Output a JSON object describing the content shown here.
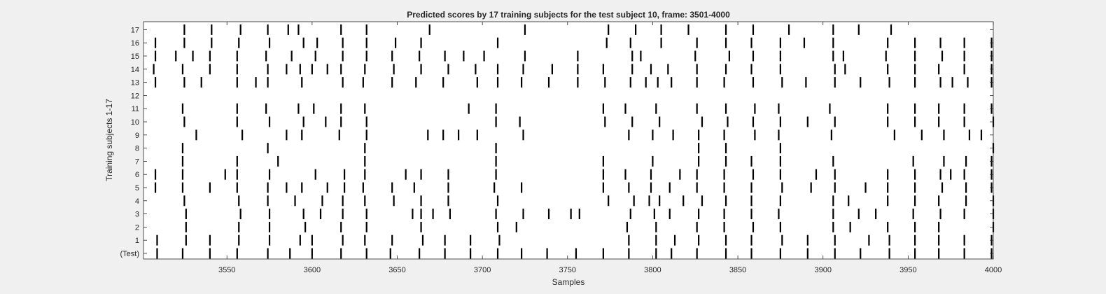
{
  "chart_data": {
    "type": "raster",
    "title": "Predicted scores by 17 training subjects for the test subject 10, frame: 3501-4000",
    "xlabel": "Samples",
    "ylabel": "Training subjects 1-17",
    "xlim": [
      3501,
      4000
    ],
    "x_ticks": [
      3550,
      3600,
      3650,
      3700,
      3750,
      3800,
      3850,
      3900,
      3950,
      4000
    ],
    "y_tick_labels": [
      "(Test)",
      "1",
      "2",
      "3",
      "4",
      "5",
      "6",
      "7",
      "8",
      "9",
      "10",
      "11",
      "12",
      "13",
      "14",
      "15",
      "16",
      "17"
    ],
    "grid": false,
    "mark_color": "#000000",
    "rows": [
      {
        "label": "(Test)",
        "events": [
          3509,
          3524,
          3540,
          3556,
          3574,
          3587,
          3600,
          3617,
          3632,
          3646,
          3663,
          3678,
          3693,
          3709,
          3723,
          3738,
          3755,
          3771,
          3786,
          3802,
          3811,
          3826,
          3843,
          3858,
          3875,
          3891,
          3907,
          3922,
          3939,
          3954,
          3968,
          3983,
          3999
        ]
      },
      {
        "label": "1",
        "events": [
          3509,
          3526,
          3540,
          3557,
          3575,
          3593,
          3600,
          3618,
          3631,
          3647,
          3665,
          3678,
          3693,
          3710,
          3786,
          3802,
          3813,
          3827,
          3843,
          3858,
          3876,
          3891,
          3907,
          3927,
          3939,
          3954,
          3968,
          3983,
          3999
        ]
      },
      {
        "label": "2",
        "events": [
          3526,
          3557,
          3575,
          3596,
          3617,
          3632,
          3664,
          3709,
          3720,
          3785,
          3802,
          3826,
          3842,
          3859,
          3875,
          3906,
          3916,
          3938,
          3954,
          3968,
          4000
        ]
      },
      {
        "label": "3",
        "events": [
          3526,
          3558,
          3575,
          3595,
          3605,
          3618,
          3632,
          3659,
          3664,
          3671,
          3681,
          3708,
          3724,
          3739,
          3752,
          3757,
          3787,
          3801,
          3810,
          3827,
          3842,
          3858,
          3874,
          3906,
          3921,
          3931,
          3953,
          3969,
          3983,
          4000
        ]
      },
      {
        "label": "4",
        "events": [
          3525,
          3557,
          3574,
          3590,
          3606,
          3618,
          3631,
          3648,
          3664,
          3680,
          3709,
          3774,
          3789,
          3798,
          3804,
          3818,
          3829,
          3843,
          3858,
          3875,
          3906,
          3915,
          3938,
          3954,
          3968,
          3984,
          4000
        ]
      },
      {
        "label": "5",
        "events": [
          3508,
          3524,
          3540,
          3556,
          3574,
          3585,
          3594,
          3609,
          3619,
          3630,
          3647,
          3660,
          3680,
          3707,
          3723,
          3771,
          3786,
          3799,
          3810,
          3826,
          3842,
          3858,
          3876,
          3893,
          3907,
          3925,
          3938,
          3954,
          3970,
          3984,
          3999
        ]
      },
      {
        "label": "6",
        "events": [
          3508,
          3524,
          3549,
          3556,
          3575,
          3602,
          3619,
          3631,
          3655,
          3664,
          3680,
          3708,
          3771,
          3784,
          3799,
          3816,
          3826,
          3842,
          3859,
          3875,
          3896,
          3907,
          3938,
          3954,
          3969,
          3975,
          3983,
          3999
        ]
      },
      {
        "label": "7",
        "events": [
          3524,
          3556,
          3580,
          3631,
          3708,
          3771,
          3800,
          3827,
          3843,
          3858,
          3875,
          3906,
          3953,
          3971,
          3984,
          3999
        ]
      },
      {
        "label": "8",
        "events": [
          3524,
          3574,
          3631,
          3708,
          3827,
          3843,
          3875,
          4000
        ]
      },
      {
        "label": "9",
        "events": [
          3532,
          3559,
          3585,
          3594,
          3616,
          3632,
          3668,
          3677,
          3686,
          3697,
          3724,
          3786,
          3800,
          3812,
          3827,
          3842,
          3860,
          3874,
          3905,
          3942,
          3958,
          3971,
          3986,
          3993
        ]
      },
      {
        "label": "10",
        "events": [
          3525,
          3556,
          3575,
          3595,
          3608,
          3617,
          3632,
          3708,
          3722,
          3772,
          3788,
          3804,
          3829,
          3844,
          3859,
          3875,
          3891,
          3907,
          3938,
          3954,
          3968,
          3983,
          4000
        ]
      },
      {
        "label": "11",
        "events": [
          3524,
          3556,
          3573,
          3592,
          3601,
          3617,
          3631,
          3692,
          3708,
          3771,
          3784,
          3802,
          3826,
          3843,
          3860,
          3874,
          3904,
          3938,
          3954,
          3968,
          3983,
          3999
        ]
      },
      {
        "label": "12",
        "events": []
      },
      {
        "label": "13",
        "events": [
          3508,
          3525,
          3535,
          3556,
          3567,
          3574,
          3594,
          3618,
          3630,
          3647,
          3661,
          3677,
          3697,
          3709,
          3723,
          3739,
          3756,
          3772,
          3787,
          3796,
          3803,
          3811,
          3826,
          3842,
          3859,
          3876,
          3890,
          3907,
          3922,
          3939,
          3954,
          3969,
          3976,
          3985,
          3999
        ]
      },
      {
        "label": "14",
        "events": [
          3507,
          3524,
          3540,
          3556,
          3574,
          3585,
          3593,
          3600,
          3609,
          3617,
          3631,
          3648,
          3664,
          3680,
          3696,
          3709,
          3724,
          3741,
          3756,
          3771,
          3788,
          3799,
          3809,
          3826,
          3843,
          3858,
          3875,
          3907,
          3913,
          3938,
          3954,
          3968,
          3983,
          3999
        ]
      },
      {
        "label": "15",
        "events": [
          3508,
          3520,
          3530,
          3540,
          3556,
          3573,
          3588,
          3602,
          3618,
          3632,
          3647,
          3663,
          3678,
          3689,
          3701,
          3725,
          3756,
          3788,
          3793,
          3825,
          3845,
          3859,
          3875,
          3906,
          3912,
          3937,
          3954,
          3970,
          3983,
          3999
        ]
      },
      {
        "label": "16",
        "events": [
          3508,
          3525,
          3541,
          3557,
          3575,
          3595,
          3603,
          3618,
          3632,
          3649,
          3664,
          3709,
          3773,
          3787,
          3805,
          3826,
          3843,
          3858,
          3875,
          3889,
          3906,
          3938,
          3954,
          3969,
          3983,
          3999
        ]
      },
      {
        "label": "17",
        "events": [
          3525,
          3541,
          3558,
          3574,
          3586,
          3592,
          3617,
          3632,
          3669,
          3725,
          3774,
          3790,
          3805,
          3821,
          3843,
          3859,
          3880,
          3906,
          3921,
          3940
        ]
      }
    ]
  }
}
